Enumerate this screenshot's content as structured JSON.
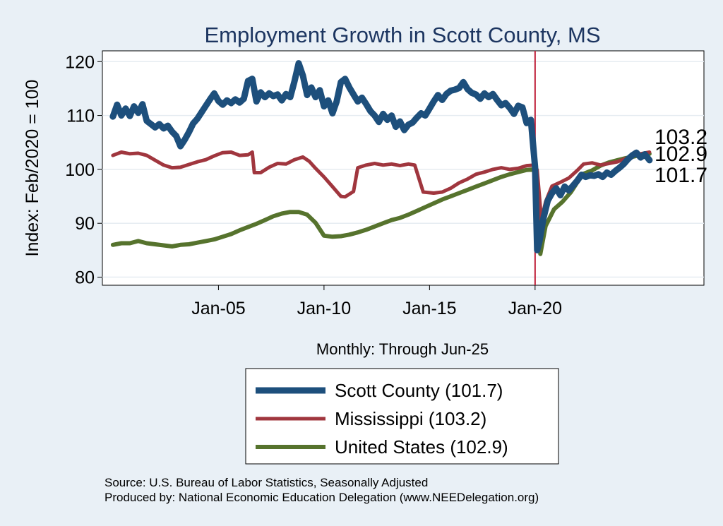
{
  "chart_data": {
    "type": "line",
    "title": "Employment Growth in Scott  County, MS",
    "xlabel": "Monthly: Through Jun-25",
    "ylabel": "Index: Feb/2020 = 100",
    "xlim": [
      1999.5,
      2028.0
    ],
    "ylim": [
      78.5,
      122
    ],
    "yticks": [
      80,
      90,
      100,
      110,
      120
    ],
    "xticks": [
      {
        "label": "Jan-05",
        "value": 2005.0
      },
      {
        "label": "Jan-10",
        "value": 2010.0
      },
      {
        "label": "Jan-15",
        "value": 2015.0
      },
      {
        "label": "Jan-20",
        "value": 2020.0
      }
    ],
    "reference_line": {
      "x": 2020.0,
      "color": "#c0203a"
    },
    "end_labels": [
      "103.2",
      "102.9",
      "101.7"
    ],
    "series": [
      {
        "name": "Scott  County",
        "legend_label": "Scott  County (101.7)",
        "color": "#1d4f7c",
        "width": 9,
        "points": [
          [
            2000.0,
            109.8
          ],
          [
            2000.2,
            112.0
          ],
          [
            2000.4,
            110.0
          ],
          [
            2000.6,
            111.3
          ],
          [
            2000.8,
            109.9
          ],
          [
            2001.0,
            111.7
          ],
          [
            2001.2,
            110.5
          ],
          [
            2001.4,
            112.1
          ],
          [
            2001.6,
            109.0
          ],
          [
            2001.8,
            108.4
          ],
          [
            2002.0,
            107.8
          ],
          [
            2002.2,
            108.4
          ],
          [
            2002.4,
            107.6
          ],
          [
            2002.6,
            108.1
          ],
          [
            2002.8,
            107.0
          ],
          [
            2003.0,
            106.2
          ],
          [
            2003.2,
            104.3
          ],
          [
            2003.4,
            105.5
          ],
          [
            2003.6,
            106.9
          ],
          [
            2003.8,
            108.5
          ],
          [
            2004.0,
            109.4
          ],
          [
            2004.2,
            110.6
          ],
          [
            2004.4,
            111.8
          ],
          [
            2004.6,
            113.0
          ],
          [
            2004.8,
            114.1
          ],
          [
            2005.0,
            112.7
          ],
          [
            2005.2,
            112.0
          ],
          [
            2005.4,
            112.8
          ],
          [
            2005.6,
            112.3
          ],
          [
            2005.8,
            113.0
          ],
          [
            2006.0,
            112.4
          ],
          [
            2006.2,
            113.1
          ],
          [
            2006.4,
            116.4
          ],
          [
            2006.6,
            116.8
          ],
          [
            2006.8,
            112.6
          ],
          [
            2007.0,
            114.3
          ],
          [
            2007.2,
            113.4
          ],
          [
            2007.4,
            114.1
          ],
          [
            2007.6,
            113.6
          ],
          [
            2007.8,
            113.9
          ],
          [
            2008.0,
            112.8
          ],
          [
            2008.2,
            114.0
          ],
          [
            2008.4,
            113.4
          ],
          [
            2008.6,
            116.3
          ],
          [
            2008.8,
            119.7
          ],
          [
            2009.0,
            117.4
          ],
          [
            2009.2,
            113.8
          ],
          [
            2009.4,
            115.2
          ],
          [
            2009.6,
            113.4
          ],
          [
            2009.8,
            114.7
          ],
          [
            2010.0,
            111.7
          ],
          [
            2010.2,
            112.8
          ],
          [
            2010.4,
            110.4
          ],
          [
            2010.6,
            112.6
          ],
          [
            2010.8,
            116.2
          ],
          [
            2011.0,
            116.8
          ],
          [
            2011.2,
            115.2
          ],
          [
            2011.4,
            113.9
          ],
          [
            2011.6,
            112.6
          ],
          [
            2011.8,
            113.3
          ],
          [
            2012.0,
            112.1
          ],
          [
            2012.2,
            110.8
          ],
          [
            2012.4,
            110.0
          ],
          [
            2012.6,
            108.8
          ],
          [
            2012.8,
            110.3
          ],
          [
            2013.0,
            109.2
          ],
          [
            2013.2,
            110.0
          ],
          [
            2013.4,
            107.9
          ],
          [
            2013.6,
            108.9
          ],
          [
            2013.8,
            107.3
          ],
          [
            2014.0,
            108.3
          ],
          [
            2014.2,
            108.7
          ],
          [
            2014.4,
            109.6
          ],
          [
            2014.6,
            110.4
          ],
          [
            2014.8,
            110.0
          ],
          [
            2015.0,
            111.3
          ],
          [
            2015.2,
            112.6
          ],
          [
            2015.4,
            113.8
          ],
          [
            2015.6,
            112.9
          ],
          [
            2015.8,
            114.0
          ],
          [
            2016.0,
            114.6
          ],
          [
            2016.2,
            114.8
          ],
          [
            2016.4,
            115.1
          ],
          [
            2016.6,
            116.2
          ],
          [
            2016.8,
            114.9
          ],
          [
            2017.0,
            114.2
          ],
          [
            2017.2,
            113.9
          ],
          [
            2017.4,
            113.1
          ],
          [
            2017.6,
            114.1
          ],
          [
            2017.8,
            113.4
          ],
          [
            2018.0,
            114.0
          ],
          [
            2018.2,
            112.9
          ],
          [
            2018.4,
            111.9
          ],
          [
            2018.6,
            112.3
          ],
          [
            2018.8,
            111.4
          ],
          [
            2019.0,
            110.3
          ],
          [
            2019.2,
            111.8
          ],
          [
            2019.4,
            111.5
          ],
          [
            2019.6,
            108.6
          ],
          [
            2019.8,
            109.2
          ],
          [
            2020.0,
            100.5
          ],
          [
            2020.1,
            85.0
          ],
          [
            2020.2,
            86.5
          ],
          [
            2020.4,
            91.0
          ],
          [
            2020.6,
            94.2
          ],
          [
            2020.8,
            95.6
          ],
          [
            2021.0,
            96.5
          ],
          [
            2021.2,
            95.2
          ],
          [
            2021.4,
            96.8
          ],
          [
            2021.6,
            96.1
          ],
          [
            2021.8,
            97.0
          ],
          [
            2022.0,
            97.9
          ],
          [
            2022.2,
            99.0
          ],
          [
            2022.4,
            98.6
          ],
          [
            2022.6,
            98.9
          ],
          [
            2022.8,
            98.8
          ],
          [
            2023.0,
            99.1
          ],
          [
            2023.2,
            98.6
          ],
          [
            2023.4,
            99.4
          ],
          [
            2023.6,
            99.0
          ],
          [
            2023.8,
            99.7
          ],
          [
            2024.0,
            100.3
          ],
          [
            2024.2,
            101.0
          ],
          [
            2024.4,
            101.9
          ],
          [
            2024.6,
            102.6
          ],
          [
            2024.8,
            103.1
          ],
          [
            2025.0,
            102.2
          ],
          [
            2025.2,
            102.8
          ],
          [
            2025.42,
            101.7
          ]
        ]
      },
      {
        "name": "Mississippi",
        "legend_label": "Mississippi (103.2)",
        "color": "#a0363e",
        "width": 5,
        "points": [
          [
            2000.0,
            102.6
          ],
          [
            2000.4,
            103.2
          ],
          [
            2000.8,
            102.9
          ],
          [
            2001.2,
            103.0
          ],
          [
            2001.6,
            102.6
          ],
          [
            2002.0,
            101.7
          ],
          [
            2002.4,
            100.8
          ],
          [
            2002.8,
            100.3
          ],
          [
            2003.2,
            100.4
          ],
          [
            2003.6,
            100.9
          ],
          [
            2004.0,
            101.4
          ],
          [
            2004.4,
            101.8
          ],
          [
            2004.8,
            102.5
          ],
          [
            2005.2,
            103.1
          ],
          [
            2005.6,
            103.2
          ],
          [
            2006.0,
            102.6
          ],
          [
            2006.4,
            102.7
          ],
          [
            2006.6,
            103.2
          ],
          [
            2006.7,
            99.4
          ],
          [
            2007.0,
            99.4
          ],
          [
            2007.4,
            100.4
          ],
          [
            2007.8,
            101.1
          ],
          [
            2008.2,
            101.0
          ],
          [
            2008.6,
            101.8
          ],
          [
            2009.0,
            102.3
          ],
          [
            2009.3,
            101.5
          ],
          [
            2009.6,
            100.2
          ],
          [
            2010.0,
            98.6
          ],
          [
            2010.4,
            96.8
          ],
          [
            2010.8,
            95.0
          ],
          [
            2011.0,
            94.9
          ],
          [
            2011.4,
            95.9
          ],
          [
            2011.6,
            100.3
          ],
          [
            2012.0,
            100.8
          ],
          [
            2012.4,
            101.1
          ],
          [
            2012.8,
            100.8
          ],
          [
            2013.2,
            101.0
          ],
          [
            2013.6,
            100.7
          ],
          [
            2014.0,
            101.0
          ],
          [
            2014.3,
            100.8
          ],
          [
            2014.7,
            95.8
          ],
          [
            2015.2,
            95.6
          ],
          [
            2015.6,
            95.8
          ],
          [
            2016.0,
            96.5
          ],
          [
            2016.4,
            97.5
          ],
          [
            2016.8,
            98.2
          ],
          [
            2017.2,
            99.1
          ],
          [
            2017.6,
            99.5
          ],
          [
            2018.0,
            100.0
          ],
          [
            2018.4,
            100.3
          ],
          [
            2018.8,
            100.0
          ],
          [
            2019.2,
            100.2
          ],
          [
            2019.6,
            100.7
          ],
          [
            2020.0,
            100.8
          ],
          [
            2020.1,
            99.9
          ],
          [
            2020.3,
            90.6
          ],
          [
            2020.5,
            94.0
          ],
          [
            2020.8,
            96.9
          ],
          [
            2021.2,
            97.6
          ],
          [
            2021.6,
            98.4
          ],
          [
            2022.0,
            99.8
          ],
          [
            2022.3,
            101.0
          ],
          [
            2022.7,
            101.2
          ],
          [
            2023.1,
            100.8
          ],
          [
            2023.5,
            101.1
          ],
          [
            2023.9,
            101.4
          ],
          [
            2024.3,
            102.0
          ],
          [
            2024.7,
            102.6
          ],
          [
            2025.0,
            102.9
          ],
          [
            2025.42,
            103.2
          ]
        ]
      },
      {
        "name": "United States",
        "legend_label": "United States (102.9)",
        "color": "#56732d",
        "width": 6,
        "points": [
          [
            2000.0,
            86.0
          ],
          [
            2000.4,
            86.3
          ],
          [
            2000.8,
            86.3
          ],
          [
            2001.2,
            86.7
          ],
          [
            2001.6,
            86.3
          ],
          [
            2002.0,
            86.1
          ],
          [
            2002.4,
            85.9
          ],
          [
            2002.8,
            85.7
          ],
          [
            2003.2,
            86.0
          ],
          [
            2003.6,
            86.1
          ],
          [
            2004.0,
            86.4
          ],
          [
            2004.4,
            86.7
          ],
          [
            2004.8,
            87.0
          ],
          [
            2005.2,
            87.5
          ],
          [
            2005.6,
            88.0
          ],
          [
            2006.0,
            88.7
          ],
          [
            2006.4,
            89.3
          ],
          [
            2006.8,
            89.9
          ],
          [
            2007.2,
            90.6
          ],
          [
            2007.6,
            91.3
          ],
          [
            2008.0,
            91.8
          ],
          [
            2008.4,
            92.1
          ],
          [
            2008.8,
            92.1
          ],
          [
            2009.2,
            91.6
          ],
          [
            2009.6,
            90.1
          ],
          [
            2010.0,
            87.7
          ],
          [
            2010.4,
            87.5
          ],
          [
            2010.8,
            87.6
          ],
          [
            2011.2,
            87.9
          ],
          [
            2011.6,
            88.3
          ],
          [
            2012.0,
            88.8
          ],
          [
            2012.4,
            89.4
          ],
          [
            2012.8,
            90.0
          ],
          [
            2013.2,
            90.6
          ],
          [
            2013.6,
            91.0
          ],
          [
            2014.0,
            91.6
          ],
          [
            2014.4,
            92.3
          ],
          [
            2014.8,
            93.0
          ],
          [
            2015.2,
            93.7
          ],
          [
            2015.6,
            94.4
          ],
          [
            2016.0,
            95.0
          ],
          [
            2016.4,
            95.6
          ],
          [
            2016.8,
            96.2
          ],
          [
            2017.2,
            96.8
          ],
          [
            2017.6,
            97.4
          ],
          [
            2018.0,
            98.0
          ],
          [
            2018.4,
            98.6
          ],
          [
            2018.8,
            99.1
          ],
          [
            2019.2,
            99.5
          ],
          [
            2019.6,
            99.9
          ],
          [
            2020.0,
            100.0
          ],
          [
            2020.1,
            98.5
          ],
          [
            2020.25,
            84.3
          ],
          [
            2020.5,
            89.5
          ],
          [
            2020.9,
            92.6
          ],
          [
            2021.3,
            94.0
          ],
          [
            2021.7,
            95.8
          ],
          [
            2022.0,
            97.6
          ],
          [
            2022.3,
            99.2
          ],
          [
            2022.7,
            99.8
          ],
          [
            2023.1,
            100.7
          ],
          [
            2023.5,
            101.3
          ],
          [
            2023.9,
            101.7
          ],
          [
            2024.3,
            102.1
          ],
          [
            2024.7,
            102.4
          ],
          [
            2025.0,
            102.7
          ],
          [
            2025.42,
            102.9
          ]
        ]
      }
    ]
  },
  "footer": {
    "source": "Source: U.S. Bureau of Labor Statistics, Seasonally Adjusted",
    "produced_by": "Produced by: National Economic Education Delegation (www.NEEDelegation.org)"
  }
}
